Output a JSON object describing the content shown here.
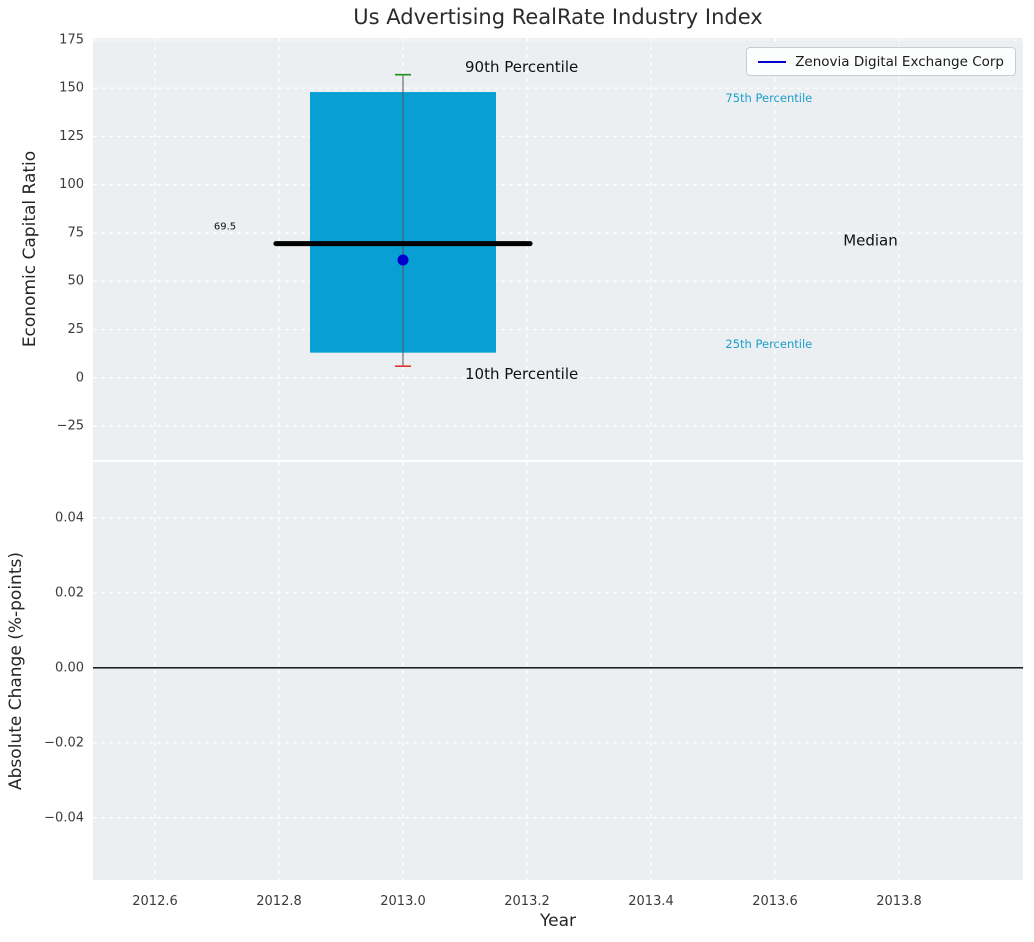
{
  "figure": {
    "title": "Us Advertising RealRate Industry Index",
    "xlabel": "Year",
    "colors": {
      "figure_background": "#ffffff",
      "axes_background": "#eceff1",
      "grid": "#ffffff",
      "tick_label": "#3b3b3b",
      "text": "#262626"
    }
  },
  "legend": {
    "label": "Zenovia Digital Exchange Corp",
    "line_color": "#0000cc"
  },
  "chart_data": [
    {
      "type": "box",
      "title": "Us Advertising RealRate Industry Index",
      "xlabel": "Year",
      "ylabel": "Economic Capital Ratio",
      "xlim": [
        2012.5,
        2014.0
      ],
      "ylim": [
        -42.6,
        176
      ],
      "grid": "white dashed on light gray",
      "legend_position": "upper right",
      "legend_entries": [
        {
          "label": "Zenovia Digital Exchange Corp",
          "color": "#0000cc"
        }
      ],
      "xticks": {
        "values": [
          2012.6,
          2012.8,
          2013.0,
          2013.2,
          2013.4,
          2013.6,
          2013.8
        ],
        "labels": [
          "2012.6",
          "2012.8",
          "2013.0",
          "2013.2",
          "2013.4",
          "2013.6",
          "2013.8"
        ]
      },
      "yticks": {
        "values": [
          175,
          150,
          125,
          100,
          75,
          50,
          25,
          0,
          -25
        ],
        "labels": [
          "175",
          "150",
          "125",
          "100",
          "75",
          "50",
          "25",
          "0",
          "−25"
        ]
      },
      "box": {
        "x": 2013.0,
        "box_half_width": 0.15,
        "median_half_width": 0.205,
        "p10": 6,
        "p25": 13,
        "median": 69.5,
        "p75": 148,
        "p90": 157,
        "company_value": 61,
        "median_label": "69.5"
      },
      "colors": {
        "box": "#089fd4",
        "median": "#000000",
        "whisker": "#555555",
        "p90_cap": "#1e8c1e",
        "p10_cap": "#e03131",
        "company_dot": "#0000cc"
      },
      "annotations": [
        {
          "id": "p90-label",
          "text": "90th Percentile",
          "x": 2013.1,
          "y": 161,
          "color": "#111111",
          "size": 15
        },
        {
          "id": "p10-label",
          "text": "10th Percentile",
          "x": 2013.1,
          "y": 2,
          "color": "#111111",
          "size": 15
        },
        {
          "id": "p75-label",
          "text": "75th Percentile",
          "x": 2013.52,
          "y": 145,
          "color": "#1a9fca",
          "size": 11.5
        },
        {
          "id": "p25-label",
          "text": "25th Percentile",
          "x": 2013.52,
          "y": 17.5,
          "color": "#1a9fca",
          "size": 11.5
        },
        {
          "id": "median-label",
          "text": "Median",
          "x": 2013.71,
          "y": 71,
          "color": "#111111",
          "size": 15
        },
        {
          "id": "median-value-label",
          "text": "69.5",
          "x": 2012.695,
          "y": 78,
          "color": "#111111",
          "size": 10
        }
      ]
    },
    {
      "type": "line",
      "ylabel": "Absolute Change (%-points)",
      "xlim": [
        2012.5,
        2014.0
      ],
      "ylim": [
        -0.0566,
        0.0549
      ],
      "grid": "white dashed on light gray",
      "zero_line": true,
      "yticks": {
        "values": [
          0.04,
          0.02,
          0.0,
          -0.02,
          -0.04
        ],
        "labels": [
          "0.04",
          "0.02",
          "0.00",
          "−0.02",
          "−0.04"
        ]
      },
      "series": []
    }
  ]
}
